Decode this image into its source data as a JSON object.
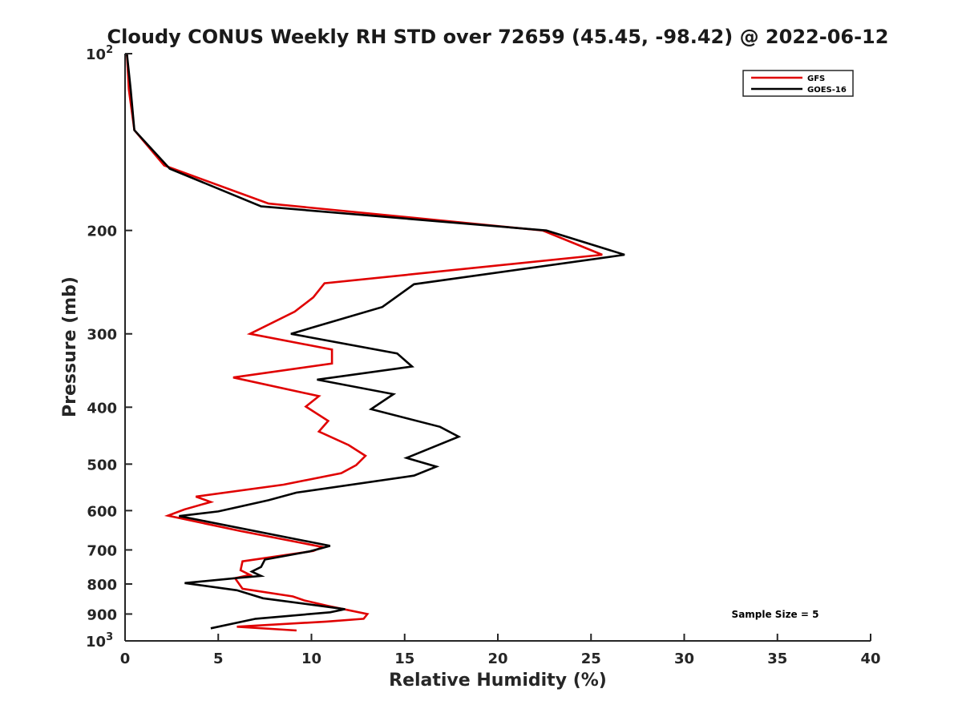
{
  "chart_data": {
    "type": "line",
    "title": "Cloudy CONUS Weekly RH STD over 72659 (45.45, -98.42) @ 2022-06-12",
    "xlabel": "Relative Humidity (%)",
    "ylabel": "Pressure (mb)",
    "xlim": [
      0,
      40
    ],
    "ylim": [
      100,
      1000
    ],
    "y_scale": "log",
    "y_reversed": true,
    "grid": false,
    "legend_position": "top-right",
    "x_ticks": [
      "0",
      "5",
      "10",
      "15",
      "20",
      "25",
      "30",
      "35",
      "40"
    ],
    "x_tick_values": [
      0,
      5,
      10,
      15,
      20,
      25,
      30,
      35,
      40
    ],
    "y_ticks": [
      {
        "value": 100,
        "base": "10",
        "exp": "2"
      },
      {
        "value": 200,
        "base": "200",
        "exp": ""
      },
      {
        "value": 300,
        "base": "300",
        "exp": ""
      },
      {
        "value": 400,
        "base": "400",
        "exp": ""
      },
      {
        "value": 500,
        "base": "500",
        "exp": ""
      },
      {
        "value": 600,
        "base": "600",
        "exp": ""
      },
      {
        "value": 700,
        "base": "700",
        "exp": ""
      },
      {
        "value": 800,
        "base": "800",
        "exp": ""
      },
      {
        "value": 900,
        "base": "900",
        "exp": ""
      },
      {
        "value": 1000,
        "base": "10",
        "exp": "3"
      }
    ],
    "annotation": "Sample Size = 5",
    "series": [
      {
        "name": "GFS",
        "color": "#e00000",
        "x": [
          0.1,
          0.2,
          0.5,
          2.1,
          7.7,
          22.4,
          25.6,
          10.7,
          10.1,
          9.1,
          6.7,
          11.1,
          11.1,
          5.8,
          10.4,
          9.7,
          10.9,
          10.4,
          12.0,
          12.9,
          12.4,
          11.6,
          8.5,
          3.8,
          4.6,
          3.2,
          2.3,
          6.2,
          10.6,
          10.1,
          6.3,
          6.2,
          6.7,
          5.9,
          6.3,
          9.0,
          9.6,
          10.9,
          13.0,
          12.8,
          10.8,
          6.0,
          9.2
        ],
        "y": [
          100,
          115,
          135,
          155,
          180,
          200,
          220,
          246,
          260,
          275,
          300,
          319,
          337,
          356,
          383,
          399,
          422,
          440,
          464,
          484,
          502,
          518,
          542,
          568,
          580,
          597,
          612,
          650,
          692,
          703,
          732,
          758,
          772,
          782,
          815,
          840,
          853,
          872,
          900,
          917,
          927,
          946,
          960
        ]
      },
      {
        "name": "GOES-16",
        "color": "#000000",
        "x": [
          0.1,
          0.3,
          0.5,
          2.4,
          7.3,
          22.6,
          26.8,
          15.5,
          13.8,
          8.9,
          14.6,
          15.4,
          10.3,
          14.4,
          13.2,
          16.9,
          17.9,
          15.1,
          16.7,
          15.5,
          9.2,
          7.7,
          5.0,
          2.9,
          11.0,
          9.9,
          7.5,
          7.3,
          6.8,
          7.3,
          6.1,
          3.2,
          6.0,
          7.4,
          11.8,
          11.0,
          7.0,
          4.6
        ],
        "y": [
          100,
          115,
          135,
          157,
          182,
          200,
          220,
          247,
          270,
          300,
          324,
          341,
          359,
          380,
          403,
          432,
          449,
          488,
          505,
          523,
          559,
          576,
          602,
          613,
          689,
          704,
          727,
          748,
          762,
          775,
          781,
          797,
          820,
          846,
          883,
          894,
          917,
          952
        ]
      }
    ]
  }
}
